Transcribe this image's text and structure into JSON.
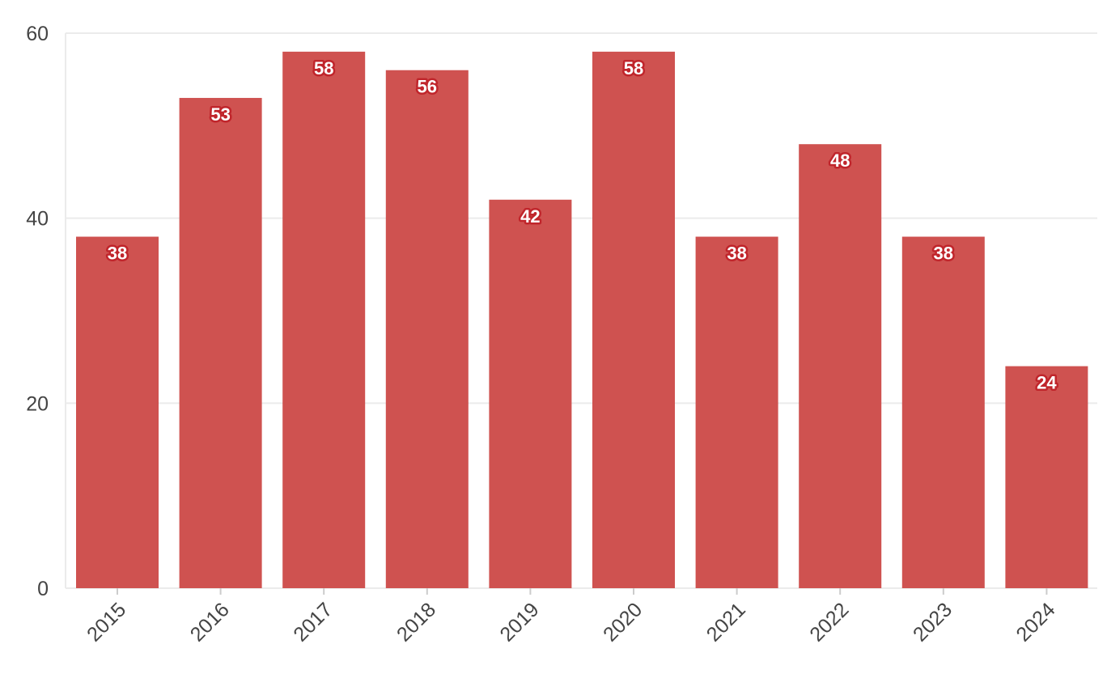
{
  "chart_data": {
    "type": "bar",
    "categories": [
      "2015",
      "2016",
      "2017",
      "2018",
      "2019",
      "2020",
      "2021",
      "2022",
      "2023",
      "2024"
    ],
    "values": [
      38,
      53,
      58,
      56,
      42,
      58,
      38,
      48,
      38,
      24
    ],
    "title": "",
    "xlabel": "",
    "ylabel": "",
    "ylim": [
      0,
      60
    ],
    "yticks": [
      0,
      20,
      40,
      60
    ],
    "grid": true,
    "bar_color": "#cf5250",
    "label_outline_color": "#c0252b",
    "data_labels": true
  }
}
